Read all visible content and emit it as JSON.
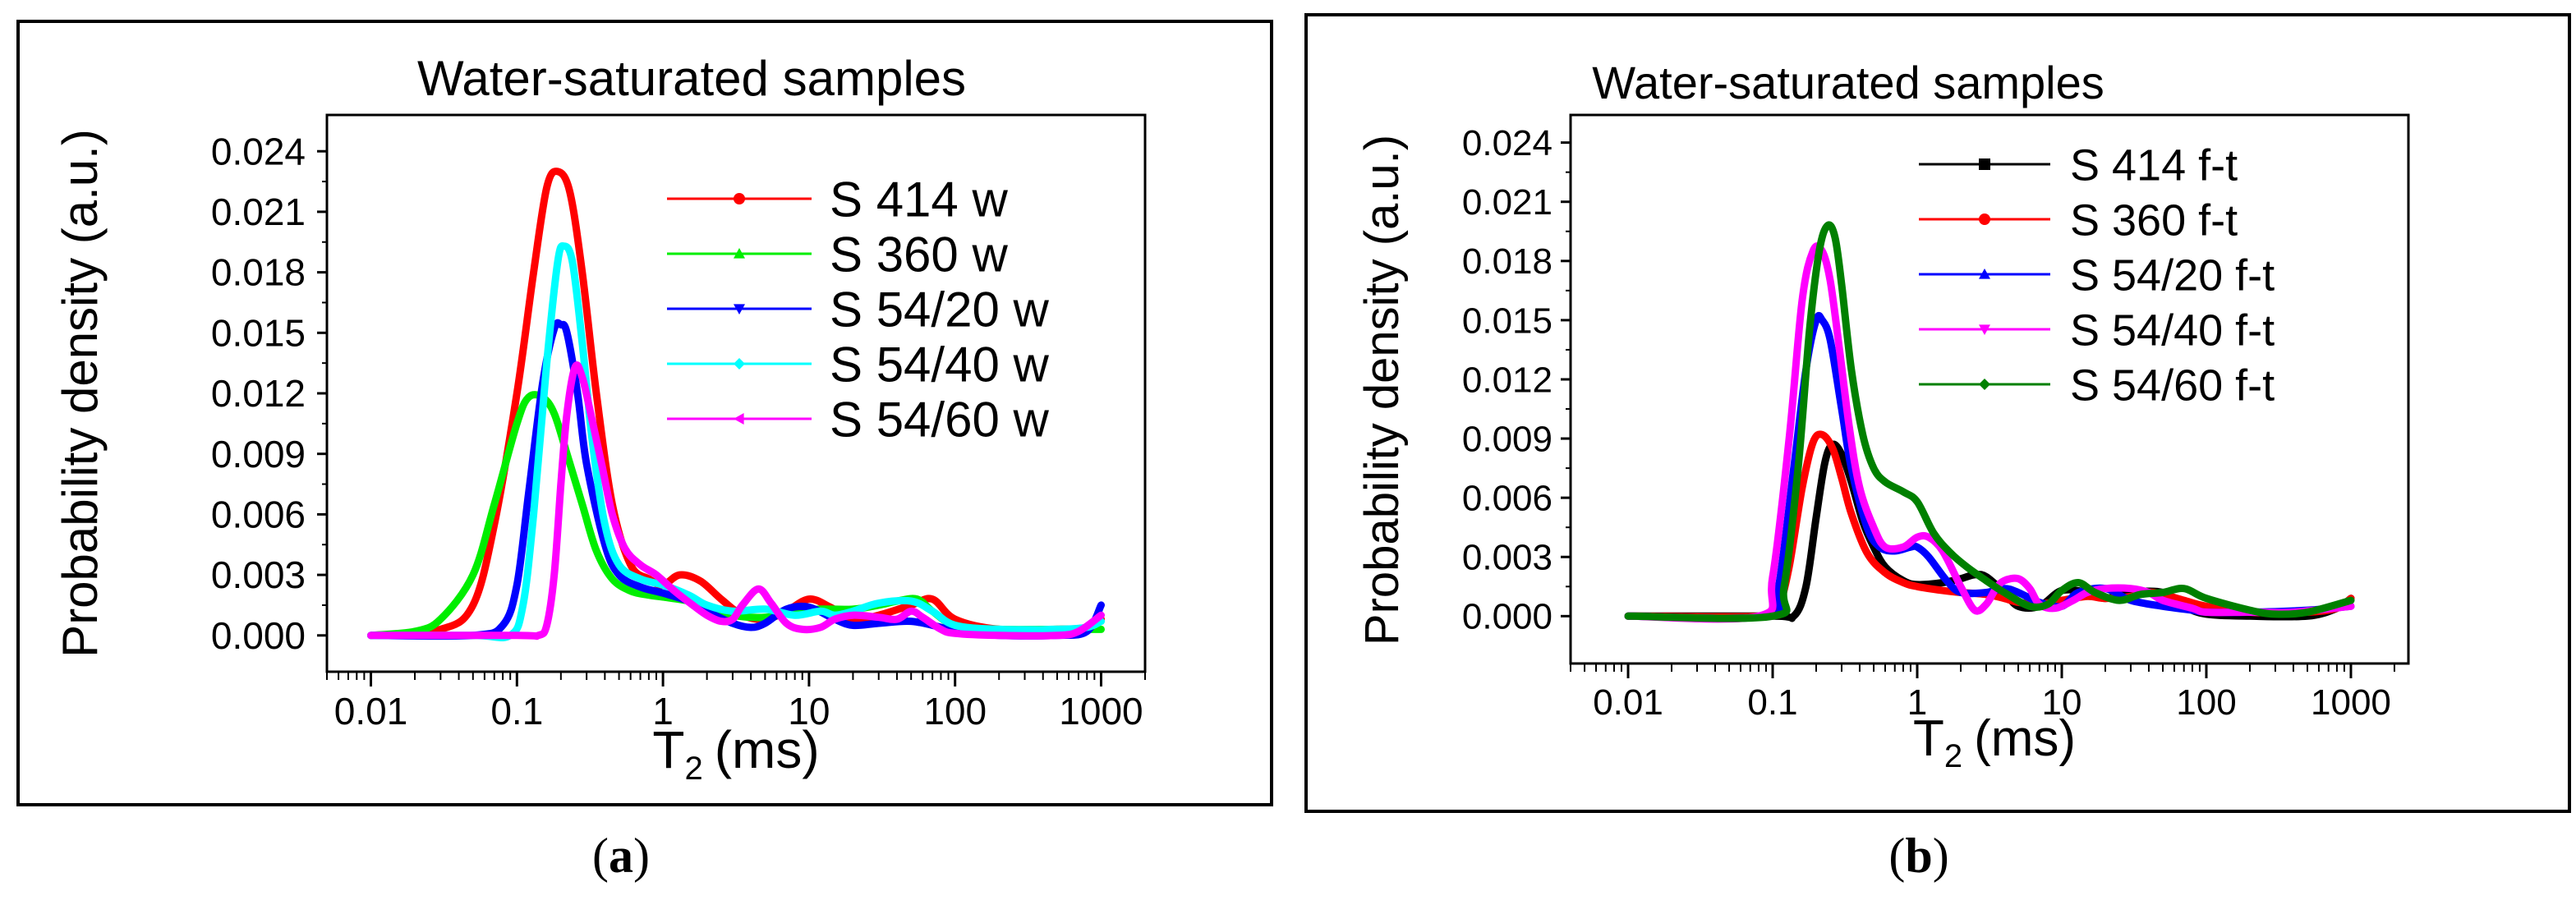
{
  "chart_data": [
    {
      "type": "line",
      "panel_label": "(a)",
      "panel_label_letter": "a",
      "title": "Water-saturated samples",
      "xlabel": "T",
      "xlabel_sub": "2",
      "xlabel_unit": "(ms)",
      "ylabel": "Probability density (a.u.)",
      "xscale": "log",
      "xlim": [
        0.005,
        2000
      ],
      "ylim": [
        -0.0018,
        0.0258
      ],
      "xticks": [
        0.01,
        0.1,
        1,
        10,
        100,
        1000
      ],
      "xtick_labels": [
        "0.01",
        "0.1",
        "1",
        "10",
        "100",
        "1000"
      ],
      "yticks": [
        0,
        0.003,
        0.006,
        0.009,
        0.012,
        0.015,
        0.018,
        0.021,
        0.024
      ],
      "ytick_labels": [
        "0.000",
        "0.003",
        "0.006",
        "0.009",
        "0.012",
        "0.015",
        "0.018",
        "0.021",
        "0.024"
      ],
      "legend_position": "top-right",
      "series": [
        {
          "name": "S 414 w",
          "color": "#ff0000",
          "marker": "circle",
          "x": [
            0.01,
            0.03,
            0.05,
            0.07,
            0.1,
            0.13,
            0.16,
            0.19,
            0.23,
            0.28,
            0.35,
            0.45,
            0.6,
            0.8,
            1.0,
            1.3,
            1.8,
            2.5,
            3.5,
            5,
            7,
            10,
            14,
            20,
            30,
            50,
            70,
            100,
            200,
            500,
            800,
            1000
          ],
          "y": [
            0,
            0.0003,
            0.0015,
            0.0055,
            0.012,
            0.018,
            0.0222,
            0.023,
            0.022,
            0.018,
            0.012,
            0.0065,
            0.0035,
            0.0028,
            0.0025,
            0.003,
            0.0027,
            0.0018,
            0.001,
            0.0008,
            0.0012,
            0.0018,
            0.0014,
            0.0008,
            0.001,
            0.0015,
            0.0018,
            0.0008,
            0.0003,
            0.0003,
            0.0004,
            0.0008
          ]
        },
        {
          "name": "S 360 w",
          "color": "#00ee00",
          "marker": "triangle-up",
          "x": [
            0.01,
            0.02,
            0.03,
            0.05,
            0.07,
            0.1,
            0.12,
            0.15,
            0.18,
            0.22,
            0.28,
            0.35,
            0.45,
            0.6,
            0.8,
            1.0,
            1.5,
            2,
            3,
            5,
            8,
            12,
            20,
            30,
            40,
            55,
            70,
            100,
            200,
            500,
            800,
            1000
          ],
          "y": [
            0,
            0.0002,
            0.0008,
            0.003,
            0.0065,
            0.0105,
            0.0118,
            0.0118,
            0.011,
            0.009,
            0.0065,
            0.0042,
            0.0028,
            0.0022,
            0.002,
            0.0019,
            0.0017,
            0.0014,
            0.001,
            0.0009,
            0.0012,
            0.0013,
            0.0013,
            0.0015,
            0.0017,
            0.0018,
            0.0012,
            0.0005,
            0.0003,
            0.0003,
            0.0003,
            0.0003
          ]
        },
        {
          "name": "S 54/20 w",
          "color": "#0000ff",
          "marker": "triangle-down",
          "x": [
            0.01,
            0.05,
            0.08,
            0.1,
            0.12,
            0.15,
            0.18,
            0.2,
            0.22,
            0.26,
            0.3,
            0.4,
            0.5,
            0.7,
            1.0,
            1.5,
            2,
            3,
            4,
            5,
            7,
            10,
            15,
            20,
            30,
            50,
            80,
            100,
            200,
            500,
            800,
            1000
          ],
          "y": [
            0,
            0,
            0.0005,
            0.0025,
            0.007,
            0.0125,
            0.0152,
            0.0154,
            0.015,
            0.012,
            0.0085,
            0.0045,
            0.003,
            0.0024,
            0.0021,
            0.0017,
            0.0012,
            0.0006,
            0.0004,
            0.0006,
            0.0013,
            0.0014,
            0.0008,
            0.0005,
            0.0006,
            0.0007,
            0.0004,
            0.0002,
            0,
            0,
            0.0002,
            0.0015
          ]
        },
        {
          "name": "S 54/40 w",
          "color": "#00ffff",
          "marker": "diamond",
          "x": [
            0.01,
            0.05,
            0.09,
            0.11,
            0.13,
            0.16,
            0.19,
            0.21,
            0.24,
            0.28,
            0.33,
            0.4,
            0.5,
            0.7,
            1.0,
            1.5,
            2,
            3,
            5,
            8,
            12,
            15,
            20,
            30,
            50,
            70,
            100,
            200,
            500,
            800,
            1000
          ],
          "y": [
            0,
            0,
            0,
            0.0015,
            0.006,
            0.0135,
            0.0185,
            0.0193,
            0.0185,
            0.0145,
            0.0095,
            0.0055,
            0.0035,
            0.0028,
            0.0025,
            0.002,
            0.0015,
            0.0012,
            0.0013,
            0.001,
            0.0012,
            0.001,
            0.0012,
            0.0016,
            0.0017,
            0.0012,
            0.0005,
            0.0003,
            0.0003,
            0.0004,
            0.0007
          ]
        },
        {
          "name": "S 54/60 w",
          "color": "#ff00ff",
          "marker": "triangle-left",
          "x": [
            0.01,
            0.1,
            0.14,
            0.16,
            0.18,
            0.2,
            0.22,
            0.25,
            0.28,
            0.32,
            0.38,
            0.45,
            0.55,
            0.7,
            0.9,
            1.2,
            1.6,
            2,
            2.5,
            3,
            3.5,
            4.5,
            5.5,
            7,
            9,
            12,
            15,
            20,
            30,
            40,
            50,
            60,
            80,
            100,
            200,
            500,
            700,
            1000
          ],
          "y": [
            0,
            0,
            0,
            0.0005,
            0.003,
            0.0075,
            0.011,
            0.0133,
            0.0128,
            0.011,
            0.0085,
            0.006,
            0.0043,
            0.0035,
            0.003,
            0.0022,
            0.0015,
            0.001,
            0.0007,
            0.0008,
            0.0015,
            0.0023,
            0.0016,
            0.0006,
            0.0003,
            0.0004,
            0.0008,
            0.001,
            0.0009,
            0.0008,
            0.0012,
            0.0009,
            0.0003,
            0.0001,
            0,
            0,
            0.0002,
            0.001
          ]
        }
      ]
    },
    {
      "type": "line",
      "panel_label": "(b)",
      "panel_label_letter": "b",
      "title": "Water-saturated samples",
      "xlabel": "T",
      "xlabel_sub": "2",
      "xlabel_unit": "(ms)",
      "ylabel": "Probability density (a.u.)",
      "xscale": "log",
      "xlim": [
        0.004,
        2500
      ],
      "ylim": [
        -0.0024,
        0.0254
      ],
      "xticks": [
        0.01,
        0.1,
        1,
        10,
        100,
        1000
      ],
      "xtick_labels": [
        "0.01",
        "0.1",
        "1",
        "10",
        "100",
        "1000"
      ],
      "yticks": [
        0,
        0.003,
        0.006,
        0.009,
        0.012,
        0.015,
        0.018,
        0.021,
        0.024
      ],
      "ytick_labels": [
        "0.000",
        "0.003",
        "0.006",
        "0.009",
        "0.012",
        "0.015",
        "0.018",
        "0.021",
        "0.024"
      ],
      "legend_position": "top-right",
      "series": [
        {
          "name": "S 414 f-t",
          "color": "#000000",
          "marker": "square",
          "x": [
            0.01,
            0.1,
            0.14,
            0.17,
            0.2,
            0.23,
            0.26,
            0.3,
            0.35,
            0.42,
            0.5,
            0.6,
            0.8,
            1.0,
            1.5,
            2,
            2.5,
            3,
            4,
            5,
            7,
            10,
            15,
            20,
            30,
            50,
            70,
            100,
            200,
            500,
            800,
            1000
          ],
          "y": [
            0,
            0,
            0,
            0.0015,
            0.005,
            0.0078,
            0.0087,
            0.0082,
            0.0068,
            0.0048,
            0.0035,
            0.0025,
            0.0018,
            0.0016,
            0.0017,
            0.0019,
            0.0021,
            0.002,
            0.0012,
            0.0005,
            0.0005,
            0.0013,
            0.0012,
            0.0009,
            0.0012,
            0.0012,
            0.0005,
            0.0001,
            0,
            0,
            0.0004,
            0.0009
          ]
        },
        {
          "name": "S 360 f-t",
          "color": "#ff0000",
          "marker": "circle",
          "x": [
            0.01,
            0.09,
            0.11,
            0.13,
            0.16,
            0.19,
            0.22,
            0.26,
            0.3,
            0.35,
            0.45,
            0.6,
            0.8,
            1.0,
            1.5,
            2,
            3,
            4,
            5,
            7,
            10,
            15,
            20,
            30,
            40,
            50,
            70,
            100,
            200,
            500,
            800,
            1000
          ],
          "y": [
            0,
            0,
            0.0005,
            0.0025,
            0.0065,
            0.0088,
            0.0092,
            0.0085,
            0.007,
            0.0052,
            0.0032,
            0.0022,
            0.0017,
            0.0015,
            0.0013,
            0.0012,
            0.0011,
            0.0009,
            0.0007,
            0.0006,
            0.0008,
            0.001,
            0.0009,
            0.001,
            0.0012,
            0.0011,
            0.0008,
            0.0005,
            0.0002,
            0.0002,
            0.0004,
            0.0009
          ]
        },
        {
          "name": "S 54/20 f-t",
          "color": "#0000ff",
          "marker": "triangle-up",
          "x": [
            0.01,
            0.09,
            0.11,
            0.14,
            0.17,
            0.2,
            0.22,
            0.25,
            0.3,
            0.35,
            0.45,
            0.55,
            0.7,
            0.9,
            1.0,
            1.2,
            1.6,
            2,
            3,
            4,
            5,
            7,
            10,
            13,
            20,
            30,
            50,
            80,
            100,
            200,
            500,
            1000
          ],
          "y": [
            0,
            0,
            0.0015,
            0.0075,
            0.0125,
            0.015,
            0.015,
            0.014,
            0.0105,
            0.0075,
            0.0045,
            0.0035,
            0.0033,
            0.0035,
            0.0035,
            0.003,
            0.0018,
            0.0012,
            0.0012,
            0.0014,
            0.0012,
            0.0007,
            0.0005,
            0.0012,
            0.0014,
            0.0008,
            0.0005,
            0.0003,
            0.0002,
            0.0002,
            0.0003,
            0.0005
          ]
        },
        {
          "name": "S 54/40 f-t",
          "color": "#ff00ff",
          "marker": "triangle-down",
          "x": [
            0.01,
            0.08,
            0.1,
            0.13,
            0.16,
            0.19,
            0.22,
            0.25,
            0.29,
            0.34,
            0.4,
            0.5,
            0.6,
            0.8,
            1.0,
            1.2,
            1.5,
            2,
            2.5,
            3,
            3.5,
            4,
            5,
            6,
            7,
            9,
            12,
            15,
            20,
            30,
            40,
            50,
            80,
            100,
            200,
            400,
            1000
          ],
          "y": [
            0,
            0,
            0.002,
            0.009,
            0.016,
            0.0185,
            0.0185,
            0.017,
            0.0135,
            0.0095,
            0.0065,
            0.0045,
            0.0035,
            0.0035,
            0.004,
            0.004,
            0.0033,
            0.0015,
            0.0003,
            0.0006,
            0.0014,
            0.0018,
            0.0019,
            0.0014,
            0.0006,
            0.0004,
            0.0008,
            0.0012,
            0.0014,
            0.0014,
            0.0012,
            0.0008,
            0.0004,
            0.0002,
            0.0002,
            0.0002,
            0.0005
          ]
        },
        {
          "name": "S 54/60 f-t",
          "color": "#008000",
          "marker": "diamond",
          "x": [
            0.01,
            0.1,
            0.12,
            0.15,
            0.18,
            0.21,
            0.24,
            0.27,
            0.3,
            0.35,
            0.42,
            0.5,
            0.6,
            0.8,
            1.0,
            1.3,
            1.7,
            2.2,
            3,
            4,
            6,
            8,
            10,
            13,
            17,
            25,
            35,
            50,
            70,
            100,
            200,
            300,
            500,
            1000
          ],
          "y": [
            0,
            0,
            0.0015,
            0.0075,
            0.0145,
            0.0185,
            0.0198,
            0.0192,
            0.0168,
            0.0125,
            0.0092,
            0.0075,
            0.0068,
            0.0063,
            0.0058,
            0.0042,
            0.0032,
            0.0025,
            0.0018,
            0.0012,
            0.0005,
            0.0006,
            0.0013,
            0.0017,
            0.0012,
            0.0008,
            0.0011,
            0.0012,
            0.0014,
            0.0009,
            0.0003,
            0.0001,
            0.0002,
            0.0008
          ]
        }
      ]
    }
  ]
}
